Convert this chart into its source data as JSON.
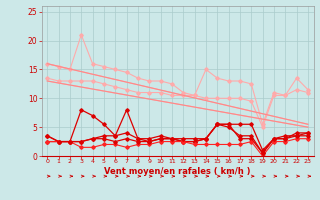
{
  "x": [
    0,
    1,
    2,
    3,
    4,
    5,
    6,
    7,
    8,
    9,
    10,
    11,
    12,
    13,
    14,
    15,
    16,
    17,
    18,
    19,
    20,
    21,
    22,
    23
  ],
  "series": [
    {
      "color": "#ffaaaa",
      "linewidth": 0.8,
      "marker": "D",
      "markersize": 1.8,
      "y": [
        16.0,
        15.5,
        15.0,
        21.0,
        16.0,
        15.5,
        15.0,
        14.5,
        13.5,
        13.0,
        13.0,
        12.5,
        11.0,
        10.5,
        15.0,
        13.5,
        13.0,
        13.0,
        12.5,
        5.5,
        11.0,
        10.5,
        13.5,
        11.5
      ]
    },
    {
      "color": "#ffaaaa",
      "linewidth": 0.8,
      "marker": "D",
      "markersize": 1.8,
      "y": [
        13.5,
        13.0,
        13.0,
        13.0,
        13.0,
        12.5,
        12.0,
        11.5,
        11.0,
        11.0,
        11.0,
        10.5,
        10.5,
        10.5,
        10.0,
        10.0,
        10.0,
        10.0,
        9.5,
        5.0,
        10.5,
        10.5,
        11.5,
        11.0
      ]
    },
    {
      "color": "#ff8888",
      "linewidth": 0.8,
      "marker": null,
      "markersize": 0,
      "y": [
        16.0,
        null,
        null,
        null,
        null,
        null,
        null,
        null,
        null,
        null,
        null,
        null,
        null,
        null,
        null,
        null,
        null,
        null,
        null,
        null,
        null,
        null,
        null,
        5.5
      ]
    },
    {
      "color": "#ff8888",
      "linewidth": 0.8,
      "marker": null,
      "markersize": 0,
      "y": [
        13.0,
        null,
        null,
        null,
        null,
        null,
        null,
        null,
        null,
        null,
        null,
        null,
        null,
        null,
        null,
        null,
        null,
        null,
        null,
        null,
        null,
        null,
        null,
        5.0
      ]
    },
    {
      "color": "#dd0000",
      "linewidth": 0.9,
      "marker": "D",
      "markersize": 1.8,
      "y": [
        3.5,
        2.5,
        2.5,
        8.0,
        7.0,
        5.5,
        3.5,
        8.0,
        3.0,
        3.0,
        3.5,
        3.0,
        2.5,
        2.5,
        3.0,
        5.5,
        5.5,
        5.5,
        5.5,
        1.0,
        3.0,
        3.0,
        4.0,
        4.0
      ]
    },
    {
      "color": "#dd0000",
      "linewidth": 0.9,
      "marker": "D",
      "markersize": 1.8,
      "y": [
        2.5,
        2.5,
        2.5,
        2.5,
        3.0,
        3.5,
        3.5,
        4.0,
        3.0,
        2.5,
        3.0,
        3.0,
        2.5,
        2.5,
        3.0,
        5.5,
        5.5,
        3.0,
        3.0,
        0.5,
        3.0,
        3.5,
        3.5,
        4.0
      ]
    },
    {
      "color": "#ff2222",
      "linewidth": 0.8,
      "marker": "D",
      "markersize": 1.8,
      "y": [
        2.5,
        2.5,
        2.5,
        1.5,
        1.5,
        2.0,
        2.0,
        1.5,
        2.0,
        2.0,
        2.5,
        2.5,
        2.5,
        2.0,
        2.0,
        2.0,
        2.0,
        2.0,
        2.5,
        0.0,
        2.5,
        2.5,
        3.0,
        3.0
      ]
    },
    {
      "color": "#dd0000",
      "linewidth": 0.9,
      "marker": "D",
      "markersize": 1.8,
      "y": [
        3.5,
        2.5,
        2.5,
        2.5,
        3.0,
        3.0,
        2.5,
        3.0,
        2.5,
        2.5,
        3.0,
        3.0,
        3.0,
        3.0,
        3.0,
        5.5,
        5.0,
        3.5,
        3.5,
        0.5,
        3.0,
        3.0,
        3.5,
        3.5
      ]
    }
  ],
  "trend_lines": [
    {
      "x0": 0,
      "y0": 16.0,
      "x1": 23,
      "y1": 5.5,
      "color": "#ffaaaa",
      "lw": 0.8
    },
    {
      "x0": 0,
      "y0": 13.0,
      "x1": 23,
      "y1": 5.0,
      "color": "#ffaaaa",
      "lw": 0.8
    }
  ],
  "xlabel": "Vent moyen/en rafales ( km/h )",
  "xlim": [
    -0.5,
    23.5
  ],
  "ylim": [
    0,
    26
  ],
  "yticks": [
    0,
    5,
    10,
    15,
    20,
    25
  ],
  "xticks": [
    0,
    1,
    2,
    3,
    4,
    5,
    6,
    7,
    8,
    9,
    10,
    11,
    12,
    13,
    14,
    15,
    16,
    17,
    18,
    19,
    20,
    21,
    22,
    23
  ],
  "background_color": "#cce8e8",
  "grid_color": "#aacccc",
  "xlabel_color": "#cc0000"
}
